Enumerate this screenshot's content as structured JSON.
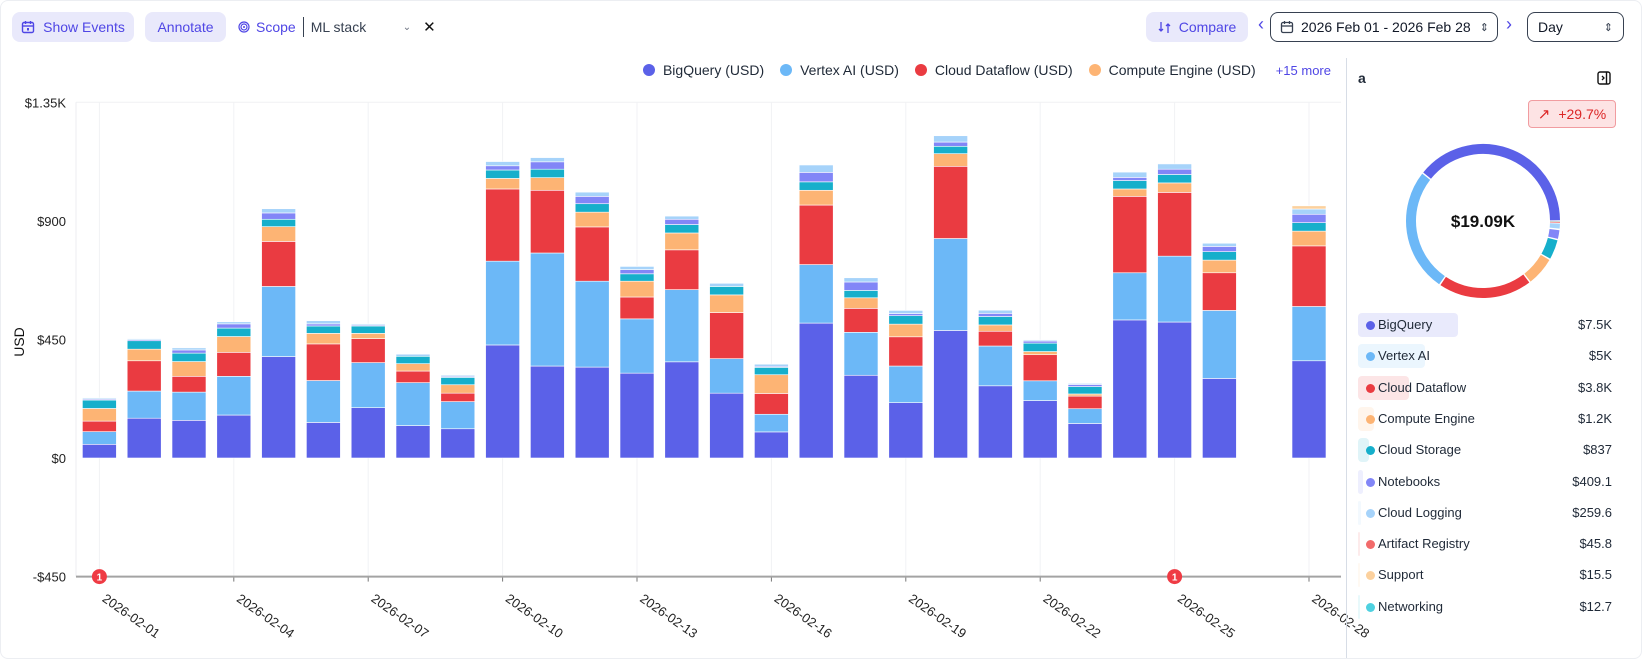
{
  "toolbar": {
    "show_events_label": "Show Events",
    "annotate_label": "Annotate",
    "scope_label": "Scope",
    "scope_value": "ML stack",
    "compare_label": "Compare",
    "date_range": "2026 Feb 01 - 2026 Feb 28",
    "granularity": "Day"
  },
  "legend": {
    "items": [
      {
        "label": "BigQuery (USD)",
        "color": "#5B61E8"
      },
      {
        "label": "Vertex AI (USD)",
        "color": "#6CB8F7"
      },
      {
        "label": "Cloud Dataflow (USD)",
        "color": "#EA3B41"
      },
      {
        "label": "Compute Engine (USD)",
        "color": "#FDB474"
      }
    ],
    "more_label": "+15 more"
  },
  "chart_data": {
    "type": "bar",
    "stacked": true,
    "ylabel": "USD",
    "ylim": [
      -450,
      1350
    ],
    "yticks": [
      "$1.35K",
      "$900",
      "$450",
      "$0",
      "-$450"
    ],
    "ytick_values": [
      1350,
      900,
      450,
      0,
      -450
    ],
    "xtick_labels": [
      "2026-02-01",
      "2026-02-04",
      "2026-02-07",
      "2026-02-10",
      "2026-02-13",
      "2026-02-16",
      "2026-02-19",
      "2026-02-22",
      "2026-02-25",
      "2026-02-28"
    ],
    "event_markers": [
      {
        "date": "2026-02-01",
        "count": "1"
      },
      {
        "date": "2026-02-25",
        "count": "1"
      }
    ],
    "categories": [
      "2026-02-01",
      "2026-02-02",
      "2026-02-03",
      "2026-02-04",
      "2026-02-05",
      "2026-02-06",
      "2026-02-07",
      "2026-02-08",
      "2026-02-09",
      "2026-02-10",
      "2026-02-11",
      "2026-02-12",
      "2026-02-13",
      "2026-02-14",
      "2026-02-15",
      "2026-02-16",
      "2026-02-17",
      "2026-02-18",
      "2026-02-19",
      "2026-02-20",
      "2026-02-21",
      "2026-02-22",
      "2026-02-23",
      "2026-02-24",
      "2026-02-25",
      "2026-02-26",
      "2026-02-27",
      "2026-02-28"
    ],
    "series": [
      {
        "name": "BigQuery (USD)",
        "color": "#5B61E8",
        "values": [
          52,
          151,
          143,
          163,
          385,
          135,
          191,
          123,
          111,
          429,
          349,
          345,
          322,
          365,
          246,
          99,
          512,
          314,
          210,
          484,
          274,
          218,
          131,
          524,
          516,
          302,
          null,
          369
        ]
      },
      {
        "name": "Vertex AI (USD)",
        "color": "#6CB8F7",
        "values": [
          48,
          103,
          107,
          147,
          266,
          159,
          171,
          163,
          103,
          318,
          429,
          326,
          206,
          274,
          131,
          67,
          222,
          163,
          139,
          349,
          151,
          75,
          56,
          179,
          250,
          258,
          null,
          206
        ]
      },
      {
        "name": "Cloud Dataflow (USD)",
        "color": "#EA3B41",
        "values": [
          40,
          115,
          60,
          91,
          171,
          139,
          91,
          44,
          32,
          274,
          238,
          206,
          83,
          151,
          175,
          79,
          226,
          91,
          111,
          274,
          56,
          99,
          48,
          290,
          242,
          143,
          null,
          230
        ]
      },
      {
        "name": "Compute Engine (USD)",
        "color": "#FDB474",
        "values": [
          48,
          44,
          56,
          60,
          56,
          40,
          20,
          28,
          32,
          40,
          48,
          56,
          60,
          64,
          67,
          71,
          56,
          40,
          48,
          48,
          24,
          12,
          8,
          28,
          36,
          48,
          null,
          56
        ]
      },
      {
        "name": "Cloud Storage",
        "color": "#16AFCB",
        "values": [
          32,
          32,
          32,
          32,
          28,
          28,
          28,
          28,
          28,
          32,
          32,
          32,
          28,
          32,
          32,
          28,
          32,
          28,
          32,
          28,
          32,
          32,
          28,
          32,
          32,
          32,
          null,
          32
        ]
      },
      {
        "name": "Notebooks",
        "color": "#8286F7",
        "values": [
          4,
          4,
          12,
          16,
          24,
          8,
          4,
          0,
          4,
          16,
          28,
          28,
          16,
          20,
          0,
          4,
          36,
          32,
          8,
          16,
          12,
          8,
          8,
          12,
          20,
          20,
          null,
          32
        ]
      },
      {
        "name": "Cloud Logging",
        "color": "#A6D3FA",
        "values": [
          4,
          4,
          8,
          8,
          16,
          12,
          4,
          8,
          4,
          16,
          16,
          16,
          12,
          12,
          12,
          8,
          28,
          16,
          12,
          24,
          12,
          4,
          4,
          20,
          20,
          12,
          null,
          20
        ]
      },
      {
        "name": "Support",
        "color": "#FCD19E",
        "values": [
          0,
          0,
          0,
          0,
          0,
          0,
          0,
          0,
          0,
          0,
          0,
          0,
          0,
          0,
          0,
          0,
          0,
          0,
          0,
          0,
          0,
          0,
          0,
          0,
          0,
          0,
          null,
          12
        ]
      }
    ]
  },
  "panel": {
    "title": "a",
    "change_badge": "+29.7%",
    "total": "$19.09K",
    "items": [
      {
        "label": "BigQuery",
        "value": "$7.5K",
        "color": "#5B61E8"
      },
      {
        "label": "Vertex AI",
        "value": "$5K",
        "color": "#6CB8F7"
      },
      {
        "label": "Cloud Dataflow",
        "value": "$3.8K",
        "color": "#EA3B41"
      },
      {
        "label": "Compute Engine",
        "value": "$1.2K",
        "color": "#FDB474"
      },
      {
        "label": "Cloud Storage",
        "value": "$837",
        "color": "#16AFCB"
      },
      {
        "label": "Notebooks",
        "value": "$409.1",
        "color": "#8286F7"
      },
      {
        "label": "Cloud Logging",
        "value": "$259.6",
        "color": "#A6D3FA"
      },
      {
        "label": "Artifact Registry",
        "value": "$45.8",
        "color": "#F26B6B"
      },
      {
        "label": "Support",
        "value": "$15.5",
        "color": "#FCD19E"
      },
      {
        "label": "Networking",
        "value": "$12.7",
        "color": "#4FD1E0"
      }
    ]
  }
}
